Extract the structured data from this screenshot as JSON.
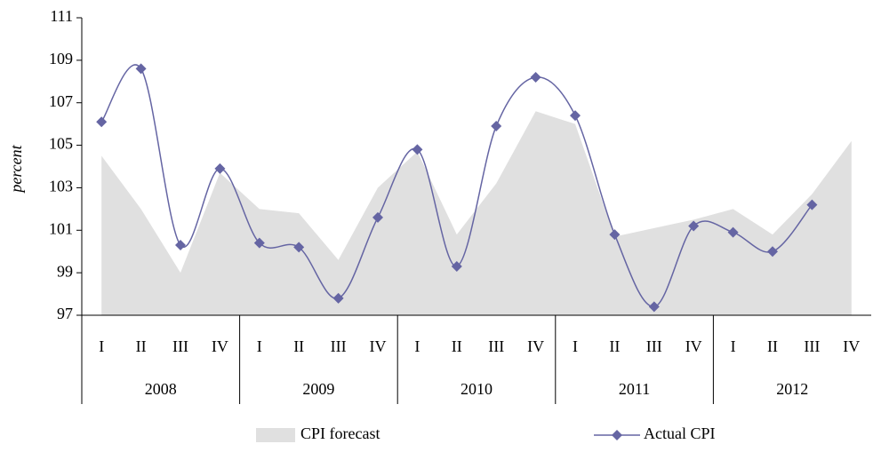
{
  "chart_data": {
    "type": "line-area",
    "y_label": "percent",
    "categories": [
      "I",
      "II",
      "III",
      "IV",
      "I",
      "II",
      "III",
      "IV",
      "I",
      "II",
      "III",
      "IV",
      "I",
      "II",
      "III",
      "IV",
      "I",
      "II",
      "III",
      "IV"
    ],
    "category_groups": [
      "2008",
      "2009",
      "2010",
      "2011",
      "2012"
    ],
    "series": [
      {
        "name": "CPI forecast",
        "kind": "area",
        "color": "#e0e0e0",
        "values": [
          104.5,
          102,
          99,
          103.7,
          102,
          101.8,
          99.6,
          103,
          104.7,
          100.8,
          103.2,
          106.6,
          106,
          100.7,
          101.1,
          101.5,
          102,
          100.8,
          102.7,
          105.2
        ]
      },
      {
        "name": "Actual CPI",
        "kind": "line",
        "color": "#6565a3",
        "values": [
          106.1,
          108.6,
          100.3,
          103.9,
          100.4,
          100.2,
          97.8,
          101.6,
          104.8,
          99.3,
          105.9,
          108.2,
          106.4,
          100.8,
          97.4,
          101.2,
          100.9,
          100.0,
          102.2,
          null
        ]
      }
    ],
    "ylim": [
      97,
      111
    ],
    "yticks": [
      97,
      99,
      101,
      103,
      105,
      107,
      109,
      111
    ]
  }
}
